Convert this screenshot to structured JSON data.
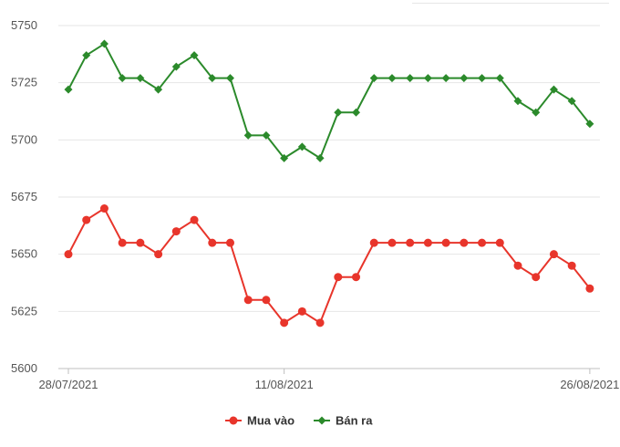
{
  "chart_data": {
    "type": "line",
    "x_tick_labels": [
      "28/07/2021",
      "11/08/2021",
      "26/08/2021"
    ],
    "x_tick_indices": [
      0,
      12,
      29
    ],
    "ylim": [
      5600,
      5750
    ],
    "y_ticks": [
      5600,
      5625,
      5650,
      5675,
      5700,
      5725,
      5750
    ],
    "grid": true,
    "legend_position": "bottom-center",
    "series": [
      {
        "name": "Mua vào",
        "color": "#e8352b",
        "marker": "circle",
        "values": [
          5650,
          5665,
          5670,
          5655,
          5655,
          5650,
          5660,
          5665,
          5655,
          5655,
          5630,
          5630,
          5620,
          5625,
          5620,
          5640,
          5640,
          5655,
          5655,
          5655,
          5655,
          5655,
          5655,
          5655,
          5655,
          5645,
          5640,
          5650,
          5645,
          5635
        ]
      },
      {
        "name": "Bán ra",
        "color": "#2b8a2b",
        "marker": "diamond",
        "values": [
          5722,
          5737,
          5742,
          5727,
          5727,
          5722,
          5732,
          5737,
          5727,
          5727,
          5702,
          5702,
          5692,
          5697,
          5692,
          5712,
          5712,
          5727,
          5727,
          5727,
          5727,
          5727,
          5727,
          5727,
          5727,
          5717,
          5712,
          5722,
          5717,
          5707
        ]
      }
    ]
  }
}
